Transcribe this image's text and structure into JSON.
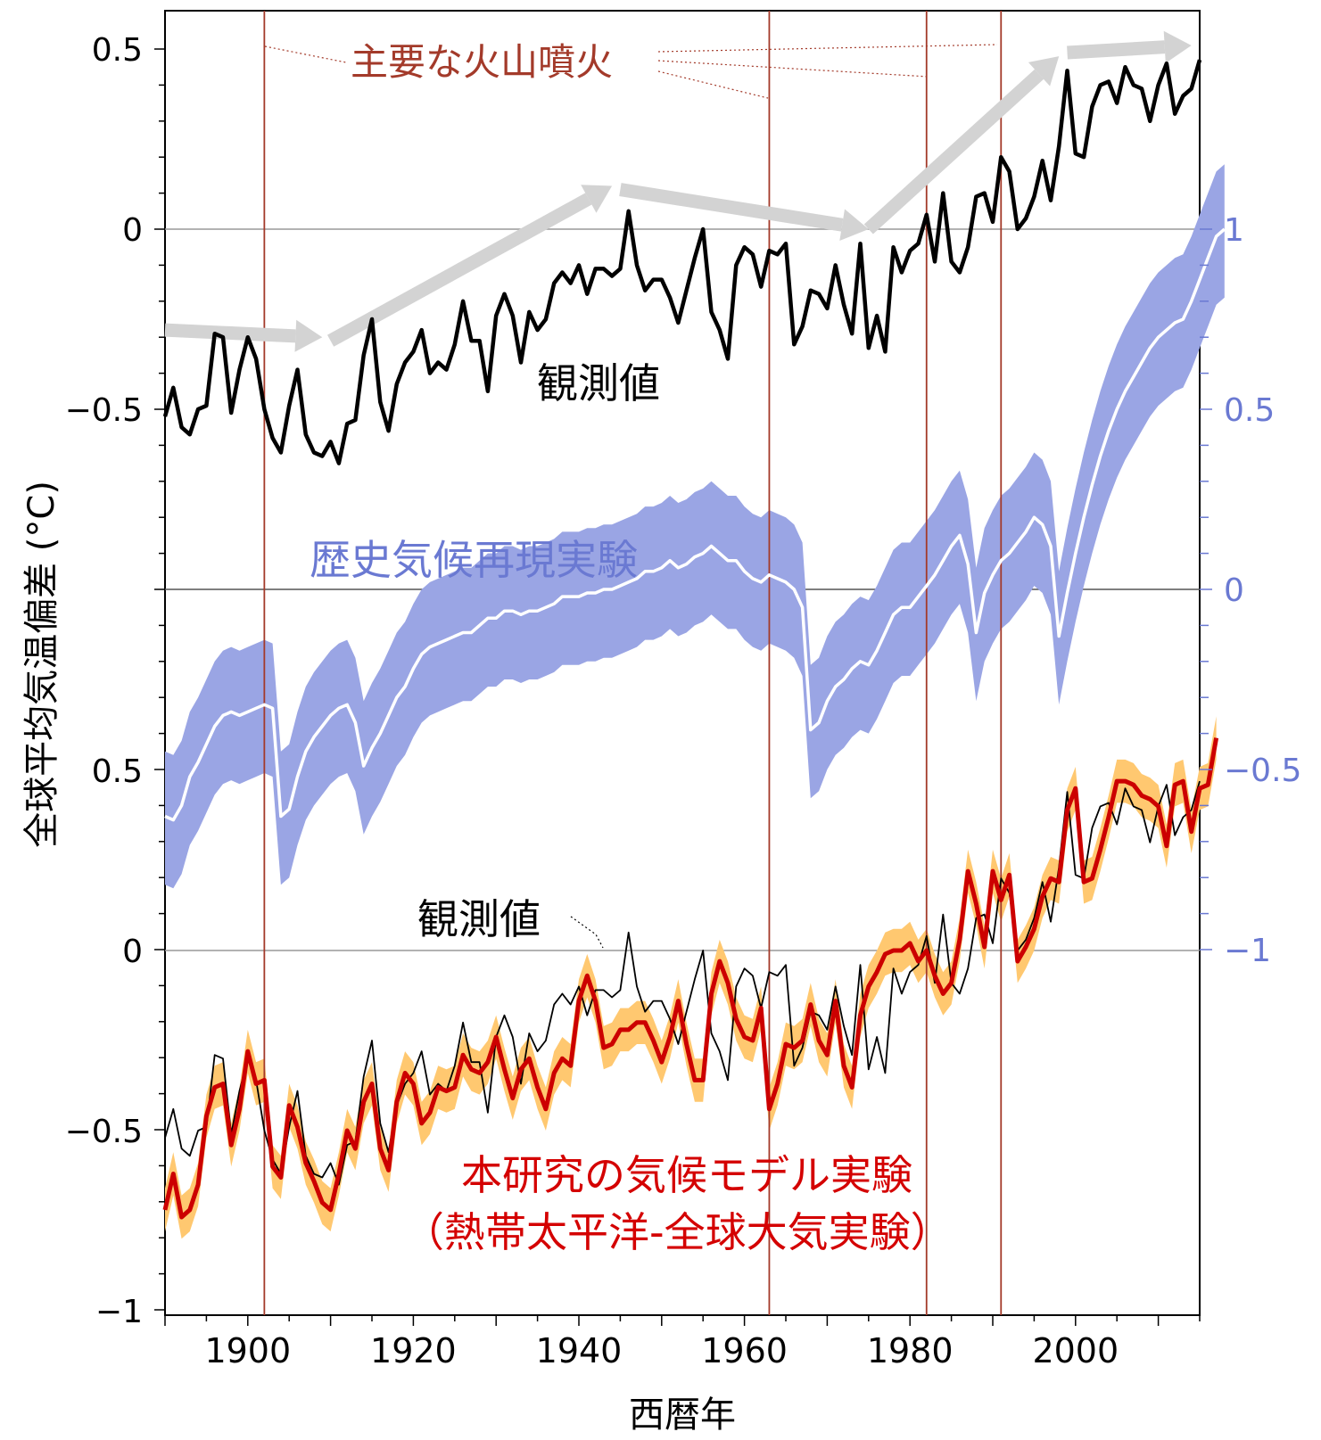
{
  "chart_data": {
    "type": "line",
    "xlabel": "西暦年",
    "ylabel": "全球平均気温偏差 (°C)",
    "xlim": [
      1890,
      2015
    ],
    "x_ticks": [
      "1900",
      "1920",
      "1940",
      "1960",
      "1980",
      "2000"
    ],
    "y_left_ticks_top": [
      "0.5",
      "0",
      "−0.5"
    ],
    "y_left_ticks_bottom": [
      "0.5",
      "0",
      "−0.5",
      "−1"
    ],
    "y_right_ticks": [
      "1",
      "0.5",
      "0",
      "−0.5",
      "−1"
    ],
    "volcano_years": [
      1902,
      1963,
      1982,
      1991
    ],
    "annotations": {
      "volcano_label": "主要な火山噴火",
      "obs_label_top": "観測値",
      "hist_label": "歴史気候再現実験",
      "obs_label_bottom": "観測値",
      "model_label_line1": "本研究の気候モデル実験",
      "model_label_line2": "（熱帯太平洋-全球大気実験）"
    },
    "colors": {
      "observed": "#000000",
      "historical_band": "#9aa5e4",
      "historical_mean": "#ffffff",
      "model_band": "#ffc870",
      "model_mean": "#cc0000",
      "volcano_line": "#a33a2a",
      "trend_arrow": "#d3d3d3",
      "right_axis": "#6a79d2"
    },
    "trend_arrows": [
      {
        "from": [
          1890,
          -0.28
        ],
        "to": [
          1909,
          -0.3
        ]
      },
      {
        "from": [
          1910,
          -0.31
        ],
        "to": [
          1944,
          0.12
        ]
      },
      {
        "from": [
          1945,
          0.11
        ],
        "to": [
          1975,
          0.0
        ]
      },
      {
        "from": [
          1975,
          0.0
        ],
        "to": [
          1998,
          0.48
        ]
      },
      {
        "from": [
          1999,
          0.49
        ],
        "to": [
          2014,
          0.51
        ]
      }
    ],
    "series": [
      {
        "key": "observed",
        "axis": "top-left",
        "x_start": 1890,
        "values": [
          -0.52,
          -0.44,
          -0.55,
          -0.57,
          -0.5,
          -0.49,
          -0.29,
          -0.3,
          -0.51,
          -0.39,
          -0.3,
          -0.36,
          -0.5,
          -0.58,
          -0.62,
          -0.49,
          -0.39,
          -0.57,
          -0.62,
          -0.63,
          -0.59,
          -0.65,
          -0.54,
          -0.53,
          -0.35,
          -0.25,
          -0.48,
          -0.56,
          -0.43,
          -0.37,
          -0.34,
          -0.28,
          -0.4,
          -0.37,
          -0.39,
          -0.32,
          -0.2,
          -0.31,
          -0.31,
          -0.45,
          -0.24,
          -0.18,
          -0.24,
          -0.37,
          -0.23,
          -0.28,
          -0.25,
          -0.15,
          -0.12,
          -0.15,
          -0.1,
          -0.18,
          -0.11,
          -0.11,
          -0.13,
          -0.11,
          0.05,
          -0.1,
          -0.17,
          -0.14,
          -0.14,
          -0.19,
          -0.26,
          -0.17,
          -0.08,
          0.0,
          -0.23,
          -0.28,
          -0.36,
          -0.1,
          -0.05,
          -0.07,
          -0.16,
          -0.06,
          -0.07,
          -0.04,
          -0.32,
          -0.27,
          -0.17,
          -0.18,
          -0.22,
          -0.1,
          -0.21,
          -0.29,
          -0.04,
          -0.33,
          -0.24,
          -0.34,
          -0.05,
          -0.12,
          -0.06,
          -0.04,
          0.04,
          -0.09,
          0.1,
          -0.09,
          -0.12,
          -0.05,
          0.09,
          0.1,
          0.02,
          0.2,
          0.16,
          0.0,
          0.03,
          0.09,
          0.19,
          0.08,
          0.23,
          0.44,
          0.21,
          0.2,
          0.34,
          0.4,
          0.41,
          0.35,
          0.45,
          0.4,
          0.39,
          0.3,
          0.4,
          0.46,
          0.32,
          0.37,
          0.39,
          0.47
        ]
      },
      {
        "key": "historical",
        "axis": "right",
        "x_start": 1890,
        "mean": [
          -0.63,
          -0.64,
          -0.6,
          -0.52,
          -0.48,
          -0.43,
          -0.38,
          -0.35,
          -0.34,
          -0.35,
          -0.34,
          -0.33,
          -0.32,
          -0.33,
          -0.63,
          -0.61,
          -0.52,
          -0.45,
          -0.41,
          -0.38,
          -0.35,
          -0.33,
          -0.32,
          -0.37,
          -0.49,
          -0.44,
          -0.4,
          -0.35,
          -0.3,
          -0.27,
          -0.22,
          -0.18,
          -0.16,
          -0.15,
          -0.14,
          -0.13,
          -0.12,
          -0.12,
          -0.1,
          -0.08,
          -0.08,
          -0.06,
          -0.06,
          -0.07,
          -0.06,
          -0.06,
          -0.05,
          -0.04,
          -0.02,
          -0.02,
          -0.02,
          -0.01,
          -0.01,
          0.0,
          0.0,
          0.01,
          0.02,
          0.03,
          0.05,
          0.05,
          0.06,
          0.08,
          0.06,
          0.07,
          0.09,
          0.1,
          0.12,
          0.1,
          0.08,
          0.08,
          0.05,
          0.03,
          0.02,
          0.04,
          0.03,
          0.02,
          0.0,
          -0.05,
          -0.39,
          -0.37,
          -0.31,
          -0.27,
          -0.25,
          -0.22,
          -0.2,
          -0.21,
          -0.17,
          -0.12,
          -0.07,
          -0.05,
          -0.05,
          -0.02,
          0.01,
          0.04,
          0.08,
          0.12,
          0.15,
          0.07,
          -0.12,
          -0.01,
          0.04,
          0.08,
          0.1,
          0.13,
          0.16,
          0.2,
          0.18,
          0.12,
          -0.13,
          -0.01,
          0.1,
          0.2,
          0.29,
          0.37,
          0.44,
          0.5,
          0.55,
          0.59,
          0.63,
          0.67,
          0.7,
          0.72,
          0.74,
          0.75,
          0.8,
          0.86,
          0.92,
          0.98,
          1.0
        ],
        "lower_offset": 0.19,
        "upper_offset": 0.18
      },
      {
        "key": "model",
        "axis": "bottom-left",
        "x_start": 1890,
        "mean": [
          -0.72,
          -0.62,
          -0.74,
          -0.72,
          -0.65,
          -0.46,
          -0.38,
          -0.37,
          -0.54,
          -0.44,
          -0.28,
          -0.37,
          -0.36,
          -0.6,
          -0.63,
          -0.43,
          -0.49,
          -0.59,
          -0.64,
          -0.7,
          -0.72,
          -0.62,
          -0.5,
          -0.55,
          -0.42,
          -0.37,
          -0.55,
          -0.61,
          -0.42,
          -0.34,
          -0.37,
          -0.48,
          -0.45,
          -0.38,
          -0.39,
          -0.38,
          -0.29,
          -0.33,
          -0.34,
          -0.31,
          -0.24,
          -0.33,
          -0.41,
          -0.33,
          -0.3,
          -0.38,
          -0.44,
          -0.34,
          -0.3,
          -0.32,
          -0.14,
          -0.07,
          -0.14,
          -0.27,
          -0.26,
          -0.22,
          -0.22,
          -0.2,
          -0.2,
          -0.25,
          -0.31,
          -0.24,
          -0.14,
          -0.26,
          -0.36,
          -0.36,
          -0.12,
          -0.03,
          -0.09,
          -0.19,
          -0.24,
          -0.25,
          -0.16,
          -0.44,
          -0.37,
          -0.26,
          -0.27,
          -0.25,
          -0.15,
          -0.25,
          -0.29,
          -0.14,
          -0.32,
          -0.38,
          -0.18,
          -0.1,
          -0.06,
          -0.01,
          0.0,
          0.0,
          0.02,
          -0.03,
          0.0,
          -0.07,
          -0.12,
          -0.09,
          0.03,
          0.22,
          0.13,
          0.01,
          0.22,
          0.14,
          0.21,
          -0.03,
          0.01,
          0.06,
          0.15,
          0.2,
          0.19,
          0.39,
          0.45,
          0.19,
          0.2,
          0.28,
          0.37,
          0.47,
          0.47,
          0.46,
          0.43,
          0.42,
          0.4,
          0.29,
          0.46,
          0.47,
          0.33,
          0.45,
          0.46,
          0.59
        ],
        "lower_offset": 0.06,
        "upper_offset": 0.06
      }
    ]
  }
}
